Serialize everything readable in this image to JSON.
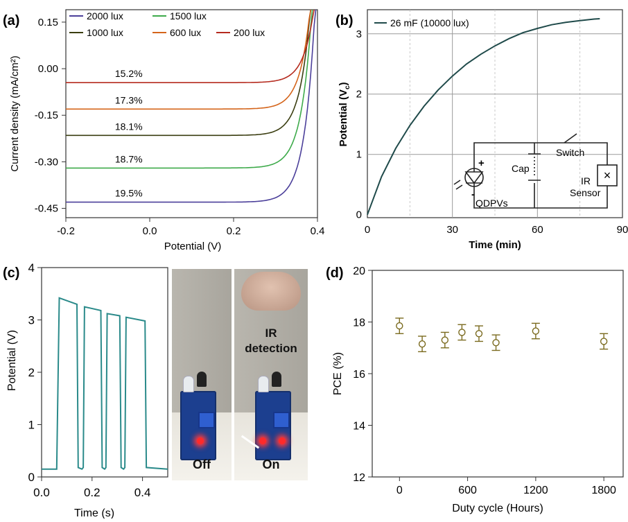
{
  "panels": {
    "a": "(a)",
    "b": "(b)",
    "c": "(c)",
    "d": "(d)"
  },
  "chart_data": [
    {
      "id": "a",
      "type": "line",
      "xlabel": "Potential (V)",
      "ylabel": "Current density (mA/cm²)",
      "xlim": [
        -0.2,
        0.4
      ],
      "ylim": [
        -0.48,
        0.19
      ],
      "xticks": [
        "-0.2",
        "0.0",
        "0.2",
        "0.4"
      ],
      "yticks": [
        "0.15",
        "0.00",
        "-0.15",
        "-0.30",
        "-0.45"
      ],
      "legend_position": "top",
      "series": [
        {
          "name": "2000 lux",
          "color": "#4b3f9a",
          "jsc": -0.43,
          "pce_label": "19.5%"
        },
        {
          "name": "1500 lux",
          "color": "#3daa4a",
          "jsc": -0.32,
          "pce_label": "18.7%"
        },
        {
          "name": "1000 lux",
          "color": "#3a3d10",
          "jsc": -0.215,
          "pce_label": "18.1%"
        },
        {
          "name": "600 lux",
          "color": "#d4641a",
          "jsc": -0.13,
          "pce_label": "17.3%"
        },
        {
          "name": "200 lux",
          "color": "#b52a1e",
          "jsc": -0.045,
          "pce_label": "15.2%"
        }
      ],
      "series_voc": [
        0.385,
        0.375,
        0.367,
        0.36,
        0.35
      ]
    },
    {
      "id": "b",
      "type": "line",
      "xlabel": "Time (min)",
      "ylabel": "Potential (V",
      "ylabel_sub": "c",
      "ylabel_end": ")",
      "xlim": [
        0,
        90
      ],
      "ylim": [
        -0.05,
        3.4
      ],
      "xticks": [
        "0",
        "30",
        "60",
        "90"
      ],
      "yticks": [
        "0",
        "1",
        "2",
        "3"
      ],
      "grid": true,
      "legend_position": "top-left",
      "series": [
        {
          "name": "26 mF (10000 lux)",
          "color": "#1f4a4a",
          "x": [
            0,
            5,
            10,
            15,
            20,
            25,
            30,
            35,
            40,
            45,
            50,
            55,
            60,
            65,
            70,
            75,
            80,
            82
          ],
          "y": [
            0.0,
            0.63,
            1.1,
            1.48,
            1.8,
            2.07,
            2.3,
            2.5,
            2.66,
            2.8,
            2.92,
            3.02,
            3.09,
            3.15,
            3.19,
            3.22,
            3.245,
            3.25
          ]
        }
      ],
      "circuit_labels": {
        "cap": "Cap",
        "switch": "Switch",
        "ir": "IR",
        "sensor": "Sensor",
        "qdpv": "QDPVs",
        "plus": "+",
        "minus": "-",
        "cross": "×"
      }
    },
    {
      "id": "c",
      "type": "line",
      "xlabel": "Time (s)",
      "ylabel": "Potential (V)",
      "xlim": [
        0,
        0.5
      ],
      "ylim": [
        0,
        4
      ],
      "xticks": [
        "0.0",
        "0.2",
        "0.4"
      ],
      "yticks": [
        "0",
        "1",
        "2",
        "3",
        "4"
      ],
      "series": [
        {
          "name": "",
          "color": "#2a8a8a",
          "x": [
            0.0,
            0.06,
            0.07,
            0.14,
            0.145,
            0.16,
            0.165,
            0.17,
            0.235,
            0.24,
            0.25,
            0.255,
            0.26,
            0.31,
            0.315,
            0.325,
            0.33,
            0.335,
            0.41,
            0.415,
            0.5
          ],
          "y": [
            0.15,
            0.15,
            3.42,
            3.3,
            0.18,
            0.15,
            0.18,
            3.25,
            3.18,
            0.18,
            0.15,
            0.18,
            3.12,
            3.08,
            0.18,
            0.15,
            0.18,
            3.05,
            2.98,
            0.18,
            0.15
          ]
        }
      ]
    },
    {
      "id": "d",
      "type": "scatter",
      "xlabel": "Duty cycle (Hours)",
      "ylabel": "PCE (%)",
      "xlim": [
        -240,
        1970
      ],
      "ylim": [
        12,
        20
      ],
      "xticks": [
        "0",
        "600",
        "1200",
        "1800"
      ],
      "yticks": [
        "12",
        "14",
        "16",
        "18",
        "20"
      ],
      "marker_color": "#7a6a1e",
      "x": [
        0,
        200,
        400,
        550,
        700,
        850,
        1200,
        1800
      ],
      "y": [
        17.85,
        17.15,
        17.3,
        17.6,
        17.55,
        17.2,
        17.65,
        17.25
      ],
      "err": [
        0.3,
        0.3,
        0.3,
        0.3,
        0.3,
        0.3,
        0.3,
        0.3
      ]
    }
  ],
  "photos": {
    "off_label": "Off",
    "on_label": "On",
    "ir_line1": "IR",
    "ir_line2": "detection"
  }
}
